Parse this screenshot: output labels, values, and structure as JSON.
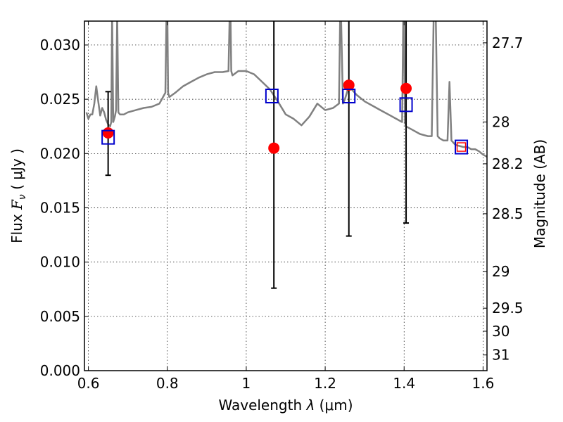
{
  "chart_data": {
    "type": "line",
    "xlabel": {
      "prefix": "Wavelength  ",
      "symbol": "λ",
      "unit": " (μm)"
    },
    "ylabel": {
      "prefix": "Flux  ",
      "symbol": "F",
      "subscript": "ν",
      "unit": "  ( μJy )"
    },
    "ylabel_right": "Magnitude (AB)",
    "xlim": [
      0.59,
      1.61
    ],
    "ylim": [
      0.0,
      0.0322
    ],
    "grid": true,
    "x_ticks": [
      {
        "value": 0.6,
        "label": "0.6"
      },
      {
        "value": 0.8,
        "label": "0.8"
      },
      {
        "value": 1.0,
        "label": "1"
      },
      {
        "value": 1.2,
        "label": "1.2"
      },
      {
        "value": 1.4,
        "label": "1.4"
      },
      {
        "value": 1.6,
        "label": "1.6"
      }
    ],
    "y_ticks": [
      {
        "value": 0.0,
        "label": "0.000"
      },
      {
        "value": 0.005,
        "label": "0.005"
      },
      {
        "value": 0.01,
        "label": "0.010"
      },
      {
        "value": 0.015,
        "label": "0.015"
      },
      {
        "value": 0.02,
        "label": "0.020"
      },
      {
        "value": 0.025,
        "label": "0.025"
      },
      {
        "value": 0.03,
        "label": "0.030"
      }
    ],
    "right_ticks": [
      {
        "value": 27.7,
        "label": "27.7"
      },
      {
        "value": 28.0,
        "label": "28"
      },
      {
        "value": 28.2,
        "label": "28.2"
      },
      {
        "value": 28.5,
        "label": "28.5"
      },
      {
        "value": 29.0,
        "label": "29"
      },
      {
        "value": 29.5,
        "label": "29.5"
      },
      {
        "value": 30.0,
        "label": "30"
      },
      {
        "value": 31.0,
        "label": "31"
      }
    ],
    "colors": {
      "spectrum": "#808080",
      "observed": "#ff0000",
      "model": "#0000cc",
      "errorbar": "#000000"
    },
    "spectrum": {
      "x": [
        0.595,
        0.6,
        0.605,
        0.61,
        0.615,
        0.62,
        0.625,
        0.63,
        0.635,
        0.64,
        0.645,
        0.65,
        0.655,
        0.658,
        0.66,
        0.663,
        0.667,
        0.67,
        0.673,
        0.676,
        0.68,
        0.69,
        0.7,
        0.72,
        0.74,
        0.76,
        0.78,
        0.795,
        0.798,
        0.8,
        0.802,
        0.805,
        0.82,
        0.84,
        0.86,
        0.88,
        0.9,
        0.92,
        0.94,
        0.955,
        0.958,
        0.96,
        0.962,
        0.965,
        0.98,
        1.0,
        1.02,
        1.04,
        1.06,
        1.08,
        1.1,
        1.12,
        1.14,
        1.16,
        1.18,
        1.2,
        1.22,
        1.235,
        1.238,
        1.24,
        1.245,
        1.25,
        1.26,
        1.28,
        1.3,
        1.32,
        1.34,
        1.36,
        1.38,
        1.395,
        1.398,
        1.4,
        1.402,
        1.405,
        1.42,
        1.44,
        1.46,
        1.47,
        1.475,
        1.48,
        1.485,
        1.49,
        1.5,
        1.51,
        1.515,
        1.52,
        1.525,
        1.53,
        1.54,
        1.55,
        1.56,
        1.57,
        1.58,
        1.59,
        1.6,
        1.61
      ],
      "flux": [
        0.0238,
        0.0232,
        0.0236,
        0.0236,
        0.0246,
        0.0262,
        0.0248,
        0.0235,
        0.0242,
        0.0238,
        0.0231,
        0.0227,
        0.0225,
        0.0229,
        0.033,
        0.0229,
        0.0234,
        0.024,
        0.033,
        0.0238,
        0.0236,
        0.0236,
        0.0238,
        0.024,
        0.0242,
        0.0243,
        0.0246,
        0.0256,
        0.033,
        0.033,
        0.0256,
        0.0252,
        0.0256,
        0.0262,
        0.0266,
        0.027,
        0.0273,
        0.0275,
        0.0275,
        0.0276,
        0.033,
        0.033,
        0.0276,
        0.0272,
        0.0276,
        0.0276,
        0.0273,
        0.0266,
        0.0259,
        0.0248,
        0.0236,
        0.0232,
        0.0226,
        0.0234,
        0.0246,
        0.024,
        0.0242,
        0.0246,
        0.033,
        0.033,
        0.0246,
        0.025,
        0.0262,
        0.0254,
        0.0248,
        0.0244,
        0.024,
        0.0236,
        0.0232,
        0.0229,
        0.033,
        0.033,
        0.0229,
        0.0225,
        0.0222,
        0.0218,
        0.0216,
        0.0216,
        0.033,
        0.033,
        0.0216,
        0.0214,
        0.0212,
        0.0212,
        0.0266,
        0.0212,
        0.021,
        0.0208,
        0.0207,
        0.0206,
        0.0206,
        0.0204,
        0.0204,
        0.0202,
        0.0199,
        0.0197
      ]
    },
    "model_points": [
      {
        "x": 0.65,
        "y": 0.0215
      },
      {
        "x": 1.065,
        "y": 0.0253
      },
      {
        "x": 1.26,
        "y": 0.0253
      },
      {
        "x": 1.405,
        "y": 0.0245
      },
      {
        "x": 1.545,
        "y": 0.0206
      }
    ],
    "observed_points": [
      {
        "x": 0.65,
        "y": 0.0219,
        "err": [
          0.018,
          0.0257
        ]
      },
      {
        "x": 1.07,
        "y": 0.0205,
        "err": [
          0.0076,
          0.0322
        ]
      },
      {
        "x": 1.26,
        "y": 0.0263,
        "err": [
          0.0124,
          0.0322
        ]
      },
      {
        "x": 1.405,
        "y": 0.026,
        "err": [
          0.0136,
          0.0322
        ]
      },
      {
        "x": 1.545,
        "y": 0.0206,
        "err": null
      }
    ]
  }
}
